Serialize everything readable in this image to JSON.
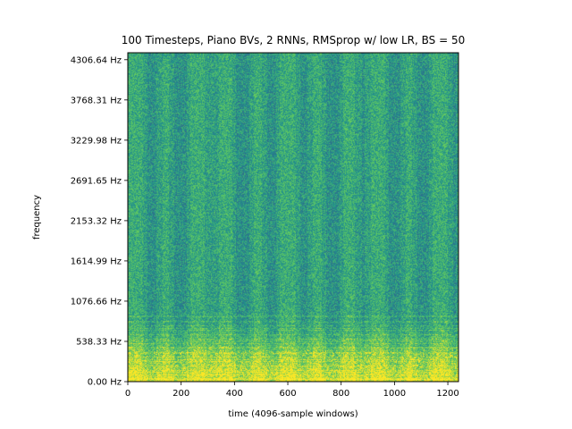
{
  "chart_data": {
    "type": "heatmap",
    "title": "100 Timesteps, Piano BVs, 2 RNNs, RMSprop w/ low LR, BS = 50",
    "xlabel": "time (4096-sample windows)",
    "ylabel": "frequency",
    "xlim": [
      0,
      1240
    ],
    "ylim": [
      0,
      4400
    ],
    "x_ticks": [
      0,
      200,
      400,
      600,
      800,
      1000,
      1200
    ],
    "x_tick_labels": [
      "0",
      "200",
      "400",
      "600",
      "800",
      "1000",
      "1200"
    ],
    "y_ticks": [
      0,
      538.33,
      1076.66,
      1614.99,
      2153.32,
      2691.65,
      3229.98,
      3768.31,
      4306.64
    ],
    "y_tick_labels": [
      "0.00 Hz",
      "538.33 Hz",
      "1076.66 Hz",
      "1614.99 Hz",
      "2153.32 Hz",
      "2691.65 Hz",
      "3229.98 Hz",
      "3768.31 Hz",
      "4306.64 Hz"
    ],
    "colormap": "viridis",
    "grid": false
  }
}
